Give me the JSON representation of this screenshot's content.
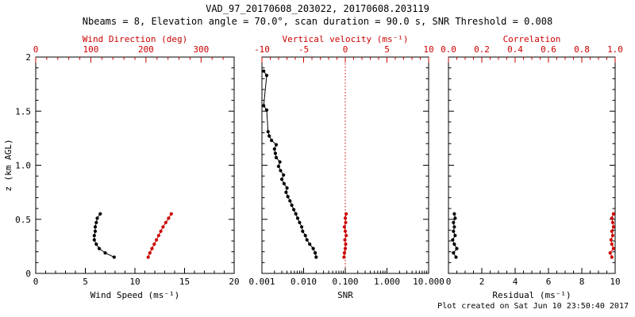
{
  "header": {
    "title": "VAD_97_20170608_203022, 20170608.203119",
    "subtitle": "Nbeams = 8, Elevation angle = 70.0°, scan duration = 90.0 s, SNR Threshold = 0.008"
  },
  "footer": {
    "created_text": "Plot created on Sat Jun 10 23:50:40 2017"
  },
  "colors": {
    "black": "#000000",
    "red": "#cc0000",
    "background": "#ffffff"
  },
  "chart_data": {
    "type": "line",
    "title": "VAD_97_20170608_203022, 20170608.203119",
    "ylabel": "z (km AGL)",
    "ylim": [
      0,
      2
    ],
    "yticks": [
      0,
      0.5,
      1,
      1.5,
      2
    ],
    "ytick_labels": [
      "0",
      "0.5",
      "1.0",
      "1.5",
      "2"
    ],
    "y_minor_step": 0.1,
    "legend": "none",
    "grid": "off",
    "panels": [
      {
        "id": "wind",
        "bottom_axis": {
          "label": "Wind Speed (ms⁻¹)",
          "scale": "linear",
          "range": [
            0,
            20
          ],
          "ticks": [
            0,
            5,
            10,
            15,
            20
          ],
          "tick_labels": [
            "0",
            "5",
            "10",
            "15",
            "20"
          ],
          "minor_divisions": 5,
          "color": "black"
        },
        "top_axis": {
          "label": "Wind Direction (deg)",
          "scale": "linear",
          "range": [
            0,
            360
          ],
          "ticks": [
            0,
            100,
            200,
            300
          ],
          "tick_labels": [
            "0",
            "100",
            "200",
            "300"
          ],
          "minor_divisions": 5,
          "color": "red"
        },
        "series": [
          {
            "name": "wind-speed",
            "axis": "bottom",
            "color": "black",
            "z": [
              0.15,
              0.19,
              0.23,
              0.27,
              0.31,
              0.35,
              0.39,
              0.43,
              0.47,
              0.51,
              0.55
            ],
            "values": [
              7.9,
              7.0,
              6.4,
              6.1,
              5.9,
              5.9,
              6.0,
              6.0,
              6.1,
              6.2,
              6.5
            ]
          },
          {
            "name": "wind-direction",
            "axis": "top",
            "color": "red",
            "z": [
              0.15,
              0.19,
              0.23,
              0.27,
              0.31,
              0.35,
              0.39,
              0.43,
              0.47,
              0.51,
              0.55
            ],
            "values": [
              204,
              207,
              211,
              215,
              219,
              223,
              227,
              231,
              236,
              241,
              246
            ]
          }
        ]
      },
      {
        "id": "snr",
        "bottom_axis": {
          "label": "SNR",
          "scale": "log",
          "range": [
            0.001,
            10
          ],
          "ticks": [
            0.001,
            0.01,
            0.1,
            1,
            10
          ],
          "tick_labels": [
            "0.001",
            "0.010",
            "0.100",
            "1.000",
            "10.000"
          ],
          "color": "black"
        },
        "top_axis": {
          "label": "Vertical velocity (ms⁻¹)",
          "scale": "linear",
          "range": [
            -10,
            10
          ],
          "ticks": [
            -10,
            -5,
            0,
            5,
            10
          ],
          "tick_labels": [
            "-10",
            "-5",
            "0",
            "5",
            "10"
          ],
          "minor_divisions": 5,
          "color": "red"
        },
        "reference_line": {
          "axis": "top",
          "value": 0,
          "color": "red",
          "style": "dotted"
        },
        "series": [
          {
            "name": "snr",
            "axis": "bottom",
            "color": "black",
            "z": [
              0.15,
              0.19,
              0.23,
              0.27,
              0.31,
              0.35,
              0.39,
              0.43,
              0.47,
              0.51,
              0.55,
              0.59,
              0.63,
              0.67,
              0.71,
              0.75,
              0.79,
              0.83,
              0.87,
              0.91,
              0.95,
              0.99,
              1.03,
              1.07,
              1.11,
              1.15,
              1.19,
              1.23,
              1.27,
              1.31,
              1.51,
              1.55,
              1.83,
              1.87
            ],
            "values": [
              0.02,
              0.019,
              0.017,
              0.014,
              0.012,
              0.011,
              0.0095,
              0.009,
              0.008,
              0.0072,
              0.0065,
              0.0058,
              0.0052,
              0.0047,
              0.0042,
              0.0038,
              0.004,
              0.0034,
              0.003,
              0.0033,
              0.0028,
              0.0025,
              0.0027,
              0.0022,
              0.0021,
              0.002,
              0.0022,
              0.0017,
              0.0015,
              0.0014,
              0.0013,
              0.0011,
              0.0013,
              0.0011
            ]
          },
          {
            "name": "vertical-velocity",
            "axis": "top",
            "color": "red",
            "z": [
              0.15,
              0.19,
              0.23,
              0.27,
              0.31,
              0.35,
              0.39,
              0.43,
              0.47,
              0.51,
              0.55
            ],
            "values": [
              -0.15,
              -0.1,
              0.0,
              0.05,
              -0.05,
              0.1,
              0.0,
              -0.1,
              0.05,
              0.0,
              0.1
            ]
          }
        ]
      },
      {
        "id": "residual",
        "bottom_axis": {
          "label": "Residual (ms⁻¹)",
          "scale": "linear",
          "range": [
            0,
            10
          ],
          "ticks": [
            0,
            2,
            4,
            6,
            8,
            10
          ],
          "tick_labels": [
            "0",
            "2",
            "4",
            "6",
            "8",
            "10"
          ],
          "minor_divisions": 4,
          "color": "black"
        },
        "top_axis": {
          "label": "Correlation",
          "scale": "linear",
          "range": [
            0,
            1
          ],
          "ticks": [
            0,
            0.2,
            0.4,
            0.6,
            0.8,
            1.0
          ],
          "tick_labels": [
            "0.0",
            "0.2",
            "0.4",
            "0.6",
            "0.8",
            "1.0"
          ],
          "minor_divisions": 4,
          "color": "red"
        },
        "series": [
          {
            "name": "residual",
            "axis": "bottom",
            "color": "black",
            "z": [
              0.15,
              0.19,
              0.23,
              0.27,
              0.31,
              0.35,
              0.39,
              0.43,
              0.47,
              0.51,
              0.55
            ],
            "values": [
              0.45,
              0.3,
              0.5,
              0.35,
              0.25,
              0.4,
              0.3,
              0.35,
              0.3,
              0.4,
              0.35
            ]
          },
          {
            "name": "correlation",
            "axis": "top",
            "color": "red",
            "z": [
              0.15,
              0.19,
              0.23,
              0.27,
              0.31,
              0.35,
              0.39,
              0.43,
              0.47,
              0.51,
              0.55
            ],
            "values": [
              0.98,
              0.97,
              0.99,
              0.98,
              0.975,
              0.985,
              0.98,
              0.99,
              0.985,
              0.98,
              0.99
            ]
          }
        ]
      }
    ]
  }
}
